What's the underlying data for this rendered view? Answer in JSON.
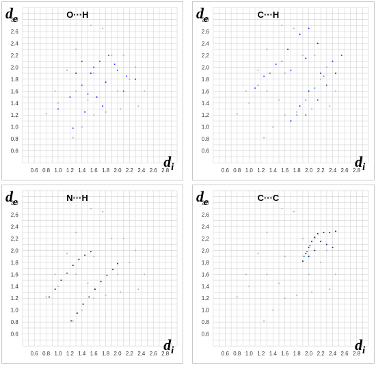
{
  "chart_data": [
    {
      "type": "scatter",
      "title": "O···H",
      "xlabel": "d",
      "xlabel_sub": "i",
      "ylabel": "d",
      "ylabel_sub": "e",
      "xlim": [
        0.4,
        3.0
      ],
      "ylim": [
        0.4,
        3.0
      ],
      "xticks": [
        "0.6",
        "0.8",
        "1.0",
        "1.2",
        "1.4",
        "1.6",
        "1.8",
        "2.0",
        "2.2",
        "2.4",
        "2.6",
        "2.8"
      ],
      "yticks": [
        "0.6",
        "0.8",
        "1.0",
        "1.2",
        "1.4",
        "1.6",
        "1.8",
        "2.0",
        "2.2",
        "2.4",
        "2.6",
        "2.8"
      ],
      "grid": true,
      "series": [
        {
          "color": "#b4b4b4",
          "points": [
            [
              1.25,
              0.82
            ],
            [
              1.4,
              1.0
            ],
            [
              1.6,
              1.2
            ],
            [
              1.8,
              1.25
            ],
            [
              2.05,
              1.3
            ],
            [
              2.35,
              1.35
            ],
            [
              2.45,
              1.6
            ],
            [
              2.3,
              2.0
            ],
            [
              2.1,
              2.2
            ],
            [
              1.75,
              2.65
            ],
            [
              1.55,
              2.7
            ],
            [
              1.3,
              2.3
            ],
            [
              1.15,
              1.95
            ],
            [
              0.95,
              1.6
            ],
            [
              0.8,
              1.22
            ],
            [
              1.0,
              1.4
            ],
            [
              1.3,
              1.6
            ],
            [
              1.6,
              1.9
            ],
            [
              1.9,
              2.2
            ],
            [
              2.2,
              1.8
            ],
            [
              1.5,
              1.45
            ],
            [
              2.0,
              1.6
            ]
          ]
        },
        {
          "color": "#1f2fff",
          "points": [
            [
              1.0,
              1.3
            ],
            [
              1.2,
              1.5
            ],
            [
              1.4,
              1.7
            ],
            [
              1.55,
              1.9
            ],
            [
              1.7,
              2.1
            ],
            [
              1.85,
              2.2
            ],
            [
              1.95,
              2.05
            ],
            [
              2.15,
              1.85
            ],
            [
              2.3,
              1.8
            ],
            [
              1.25,
              0.98
            ],
            [
              1.45,
              1.25
            ],
            [
              1.65,
              1.5
            ],
            [
              1.8,
              1.75
            ],
            [
              1.6,
              2.0
            ],
            [
              1.4,
              2.1
            ],
            [
              1.3,
              1.9
            ],
            [
              1.5,
              1.55
            ],
            [
              2.0,
              1.95
            ],
            [
              2.1,
              1.6
            ],
            [
              1.75,
              1.35
            ]
          ]
        }
      ]
    },
    {
      "type": "scatter",
      "title": "C···H",
      "xlabel": "d",
      "xlabel_sub": "i",
      "ylabel": "d",
      "ylabel_sub": "e",
      "xlim": [
        0.4,
        3.0
      ],
      "ylim": [
        0.4,
        3.0
      ],
      "xticks": [
        "0.6",
        "0.8",
        "1.0",
        "1.2",
        "1.4",
        "1.6",
        "1.8",
        "2.0",
        "2.2",
        "2.4",
        "2.6",
        "2.8"
      ],
      "yticks": [
        "0.6",
        "0.8",
        "1.0",
        "1.2",
        "1.4",
        "1.6",
        "1.8",
        "2.0",
        "2.2",
        "2.4",
        "2.6",
        "2.8"
      ],
      "grid": true,
      "series": [
        {
          "color": "#b4b4b4",
          "points": [
            [
              1.25,
              0.82
            ],
            [
              1.4,
              1.0
            ],
            [
              1.6,
              1.2
            ],
            [
              1.8,
              1.25
            ],
            [
              2.05,
              1.3
            ],
            [
              2.35,
              1.35
            ],
            [
              2.45,
              1.6
            ],
            [
              2.3,
              2.0
            ],
            [
              2.1,
              2.2
            ],
            [
              1.75,
              2.65
            ],
            [
              1.55,
              2.7
            ],
            [
              1.3,
              2.3
            ],
            [
              1.15,
              1.95
            ],
            [
              0.95,
              1.6
            ],
            [
              0.8,
              1.22
            ],
            [
              1.0,
              1.4
            ],
            [
              1.3,
              1.6
            ],
            [
              1.6,
              1.9
            ],
            [
              1.9,
              2.2
            ],
            [
              2.2,
              1.8
            ],
            [
              1.5,
              1.45
            ],
            [
              2.0,
              1.6
            ]
          ]
        },
        {
          "color": "#1f2fff",
          "points": [
            [
              1.1,
              1.65
            ],
            [
              1.25,
              1.85
            ],
            [
              1.45,
              2.05
            ],
            [
              1.65,
              2.3
            ],
            [
              1.85,
              2.55
            ],
            [
              2.0,
              2.65
            ],
            [
              2.15,
              2.4
            ],
            [
              1.95,
              2.15
            ],
            [
              1.7,
              1.95
            ],
            [
              1.7,
              1.1
            ],
            [
              1.85,
              1.35
            ],
            [
              2.0,
              1.6
            ],
            [
              2.2,
              1.9
            ],
            [
              2.4,
              2.1
            ],
            [
              2.55,
              2.2
            ],
            [
              2.45,
              1.9
            ],
            [
              2.3,
              1.7
            ],
            [
              2.15,
              1.45
            ],
            [
              1.95,
              1.2
            ]
          ]
        },
        {
          "color": "#1a8fe0",
          "points": [
            [
              1.15,
              1.7
            ],
            [
              1.35,
              1.9
            ],
            [
              1.55,
              2.1
            ],
            [
              1.8,
              1.2
            ],
            [
              1.95,
              1.45
            ],
            [
              2.1,
              1.65
            ],
            [
              2.25,
              1.85
            ]
          ]
        }
      ]
    },
    {
      "type": "scatter",
      "title": "N···H",
      "xlabel": "d",
      "xlabel_sub": "i",
      "ylabel": "d",
      "ylabel_sub": "e",
      "xlim": [
        0.4,
        3.0
      ],
      "ylim": [
        0.4,
        3.0
      ],
      "xticks": [
        "0.6",
        "0.8",
        "1.0",
        "1.2",
        "1.4",
        "1.6",
        "1.8",
        "2.0",
        "2.2",
        "2.4",
        "2.6",
        "2.8"
      ],
      "yticks": [
        "0.6",
        "0.8",
        "1.0",
        "1.2",
        "1.4",
        "1.6",
        "1.8",
        "2.0",
        "2.2",
        "2.4",
        "2.6",
        "2.8"
      ],
      "grid": true,
      "series": [
        {
          "color": "#b4b4b4",
          "points": [
            [
              1.25,
              0.82
            ],
            [
              1.4,
              1.0
            ],
            [
              1.6,
              1.2
            ],
            [
              1.8,
              1.25
            ],
            [
              2.05,
              1.3
            ],
            [
              2.35,
              1.35
            ],
            [
              2.45,
              1.6
            ],
            [
              2.3,
              2.0
            ],
            [
              2.1,
              2.2
            ],
            [
              1.75,
              2.65
            ],
            [
              1.55,
              2.7
            ],
            [
              1.3,
              2.3
            ],
            [
              1.15,
              1.95
            ],
            [
              0.95,
              1.6
            ],
            [
              0.8,
              1.22
            ],
            [
              1.0,
              1.4
            ],
            [
              1.3,
              1.6
            ],
            [
              1.6,
              1.9
            ],
            [
              1.9,
              2.2
            ],
            [
              2.2,
              1.8
            ],
            [
              1.5,
              1.45
            ],
            [
              2.0,
              1.6
            ]
          ]
        },
        {
          "color": "#1a237e",
          "points": [
            [
              0.85,
              1.22
            ],
            [
              0.95,
              1.35
            ],
            [
              1.05,
              1.5
            ],
            [
              1.15,
              1.62
            ],
            [
              1.25,
              1.75
            ],
            [
              1.35,
              1.85
            ],
            [
              1.45,
              1.92
            ],
            [
              1.55,
              1.98
            ],
            [
              1.22,
              0.82
            ],
            [
              1.32,
              0.95
            ],
            [
              1.42,
              1.1
            ],
            [
              1.52,
              1.22
            ],
            [
              1.62,
              1.35
            ],
            [
              1.72,
              1.48
            ],
            [
              1.82,
              1.58
            ],
            [
              1.92,
              1.68
            ],
            [
              2.0,
              1.78
            ]
          ]
        }
      ]
    },
    {
      "type": "scatter",
      "title": "C···C",
      "xlabel": "d",
      "xlabel_sub": "i",
      "ylabel": "d",
      "ylabel_sub": "e",
      "xlim": [
        0.4,
        3.0
      ],
      "ylim": [
        0.4,
        3.0
      ],
      "xticks": [
        "0.6",
        "0.8",
        "1.0",
        "1.2",
        "1.4",
        "1.6",
        "1.8",
        "2.0",
        "2.2",
        "2.4",
        "2.6",
        "2.8"
      ],
      "yticks": [
        "0.6",
        "0.8",
        "1.0",
        "1.2",
        "1.4",
        "1.6",
        "1.8",
        "2.0",
        "2.2",
        "2.4",
        "2.6",
        "2.8"
      ],
      "grid": true,
      "series": [
        {
          "color": "#b4b4b4",
          "points": [
            [
              1.25,
              0.82
            ],
            [
              1.4,
              1.0
            ],
            [
              1.6,
              1.2
            ],
            [
              1.8,
              1.25
            ],
            [
              2.05,
              1.3
            ],
            [
              2.35,
              1.35
            ],
            [
              2.45,
              1.6
            ],
            [
              2.3,
              2.0
            ],
            [
              2.1,
              2.2
            ],
            [
              1.75,
              2.65
            ],
            [
              1.55,
              2.7
            ],
            [
              1.3,
              2.3
            ],
            [
              1.15,
              1.95
            ],
            [
              0.95,
              1.6
            ],
            [
              0.8,
              1.22
            ],
            [
              1.0,
              1.4
            ],
            [
              1.3,
              1.6
            ],
            [
              1.6,
              1.9
            ],
            [
              1.9,
              2.2
            ],
            [
              2.2,
              1.8
            ],
            [
              1.5,
              1.45
            ],
            [
              2.0,
              1.6
            ]
          ]
        },
        {
          "color": "#1a237e",
          "points": [
            [
              1.9,
              1.82
            ],
            [
              1.95,
              1.95
            ],
            [
              2.0,
              2.05
            ],
            [
              2.05,
              2.15
            ],
            [
              2.1,
              2.22
            ],
            [
              2.15,
              2.28
            ],
            [
              2.25,
              2.3
            ],
            [
              2.35,
              2.3
            ],
            [
              2.45,
              2.32
            ],
            [
              2.2,
              2.15
            ],
            [
              2.3,
              2.1
            ],
            [
              2.4,
              2.05
            ],
            [
              2.1,
              2.0
            ],
            [
              2.0,
              1.9
            ]
          ]
        },
        {
          "color": "#0f8a8a",
          "points": [
            [
              1.92,
              1.9
            ],
            [
              1.97,
              1.98
            ],
            [
              2.02,
              2.08
            ]
          ]
        }
      ]
    }
  ]
}
